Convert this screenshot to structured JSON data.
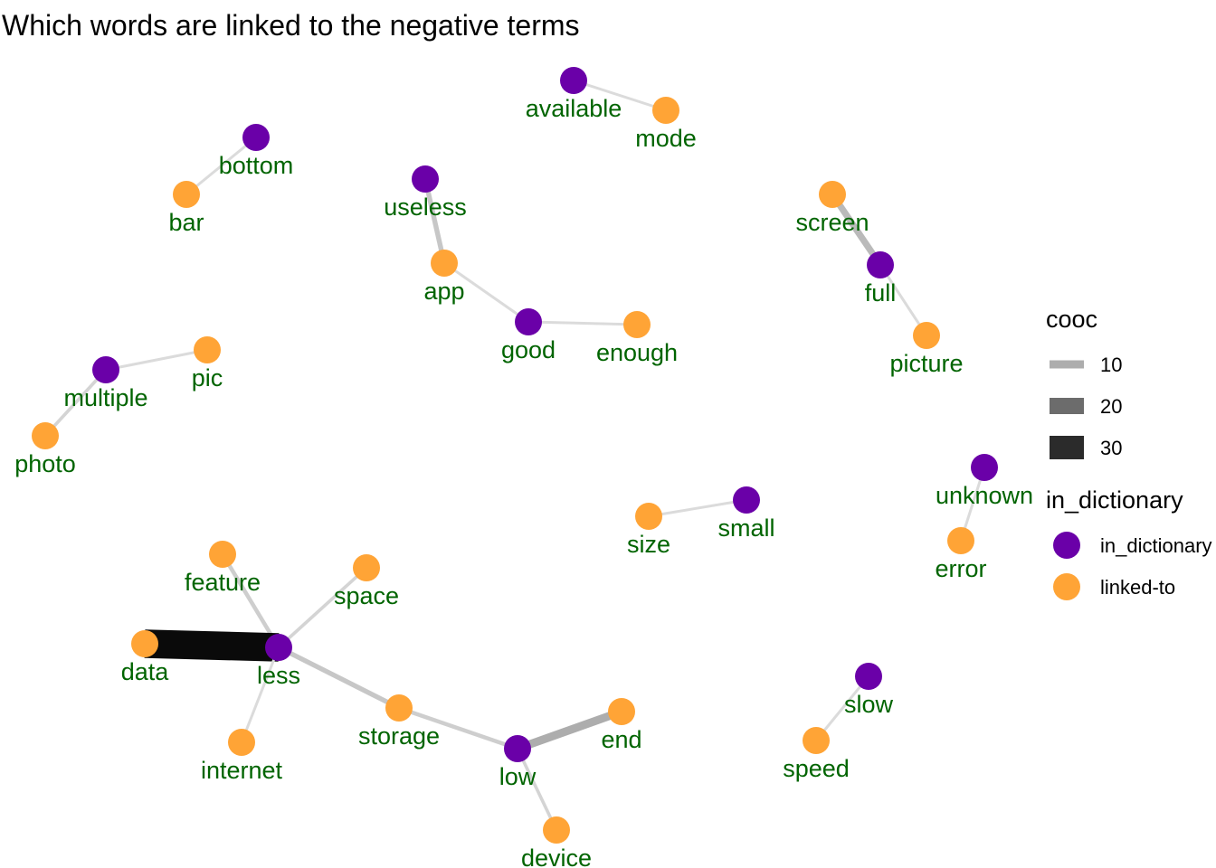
{
  "title": "Which words are linked to the negative terms",
  "colors": {
    "in_dictionary": "#6a00a8",
    "linked_to": "#ffa436",
    "label": "#006400"
  },
  "legend": {
    "cooc_title": "cooc",
    "cooc_items": [
      {
        "label": "10",
        "value": 10
      },
      {
        "label": "20",
        "value": 20
      },
      {
        "label": "30",
        "value": 30
      }
    ],
    "dict_title": "in_dictionary",
    "dict_items": [
      {
        "label": "in_dictionary",
        "type": "in_dictionary"
      },
      {
        "label": "linked-to",
        "type": "linked_to"
      }
    ]
  },
  "nodes": [
    {
      "id": "available",
      "type": "in_dictionary"
    },
    {
      "id": "mode",
      "type": "linked_to"
    },
    {
      "id": "bottom",
      "type": "in_dictionary"
    },
    {
      "id": "bar",
      "type": "linked_to"
    },
    {
      "id": "useless",
      "type": "in_dictionary"
    },
    {
      "id": "app",
      "type": "linked_to"
    },
    {
      "id": "good",
      "type": "in_dictionary"
    },
    {
      "id": "enough",
      "type": "linked_to"
    },
    {
      "id": "screen",
      "type": "linked_to"
    },
    {
      "id": "full",
      "type": "in_dictionary"
    },
    {
      "id": "picture",
      "type": "linked_to"
    },
    {
      "id": "multiple",
      "type": "in_dictionary"
    },
    {
      "id": "pic",
      "type": "linked_to"
    },
    {
      "id": "photo",
      "type": "linked_to"
    },
    {
      "id": "unknown",
      "type": "in_dictionary"
    },
    {
      "id": "error",
      "type": "linked_to"
    },
    {
      "id": "size",
      "type": "linked_to"
    },
    {
      "id": "small",
      "type": "in_dictionary"
    },
    {
      "id": "feature",
      "type": "linked_to"
    },
    {
      "id": "space",
      "type": "linked_to"
    },
    {
      "id": "data",
      "type": "linked_to"
    },
    {
      "id": "less",
      "type": "in_dictionary"
    },
    {
      "id": "internet",
      "type": "linked_to"
    },
    {
      "id": "storage",
      "type": "linked_to"
    },
    {
      "id": "low",
      "type": "in_dictionary"
    },
    {
      "id": "end",
      "type": "linked_to"
    },
    {
      "id": "device",
      "type": "linked_to"
    },
    {
      "id": "slow",
      "type": "in_dictionary"
    },
    {
      "id": "speed",
      "type": "linked_to"
    }
  ],
  "edges": [
    {
      "source": "available",
      "target": "mode",
      "cooc": 3
    },
    {
      "source": "bottom",
      "target": "bar",
      "cooc": 3
    },
    {
      "source": "useless",
      "target": "app",
      "cooc": 6
    },
    {
      "source": "app",
      "target": "good",
      "cooc": 3
    },
    {
      "source": "good",
      "target": "enough",
      "cooc": 3
    },
    {
      "source": "screen",
      "target": "full",
      "cooc": 8
    },
    {
      "source": "full",
      "target": "picture",
      "cooc": 3
    },
    {
      "source": "multiple",
      "target": "pic",
      "cooc": 3
    },
    {
      "source": "multiple",
      "target": "photo",
      "cooc": 4
    },
    {
      "source": "unknown",
      "target": "error",
      "cooc": 3
    },
    {
      "source": "size",
      "target": "small",
      "cooc": 3
    },
    {
      "source": "feature",
      "target": "less",
      "cooc": 5
    },
    {
      "source": "space",
      "target": "less",
      "cooc": 4
    },
    {
      "source": "data",
      "target": "less",
      "cooc": 35
    },
    {
      "source": "internet",
      "target": "less",
      "cooc": 3
    },
    {
      "source": "less",
      "target": "storage",
      "cooc": 6
    },
    {
      "source": "storage",
      "target": "low",
      "cooc": 5
    },
    {
      "source": "low",
      "target": "end",
      "cooc": 10
    },
    {
      "source": "low",
      "target": "device",
      "cooc": 4
    },
    {
      "source": "slow",
      "target": "speed",
      "cooc": 3
    }
  ]
}
